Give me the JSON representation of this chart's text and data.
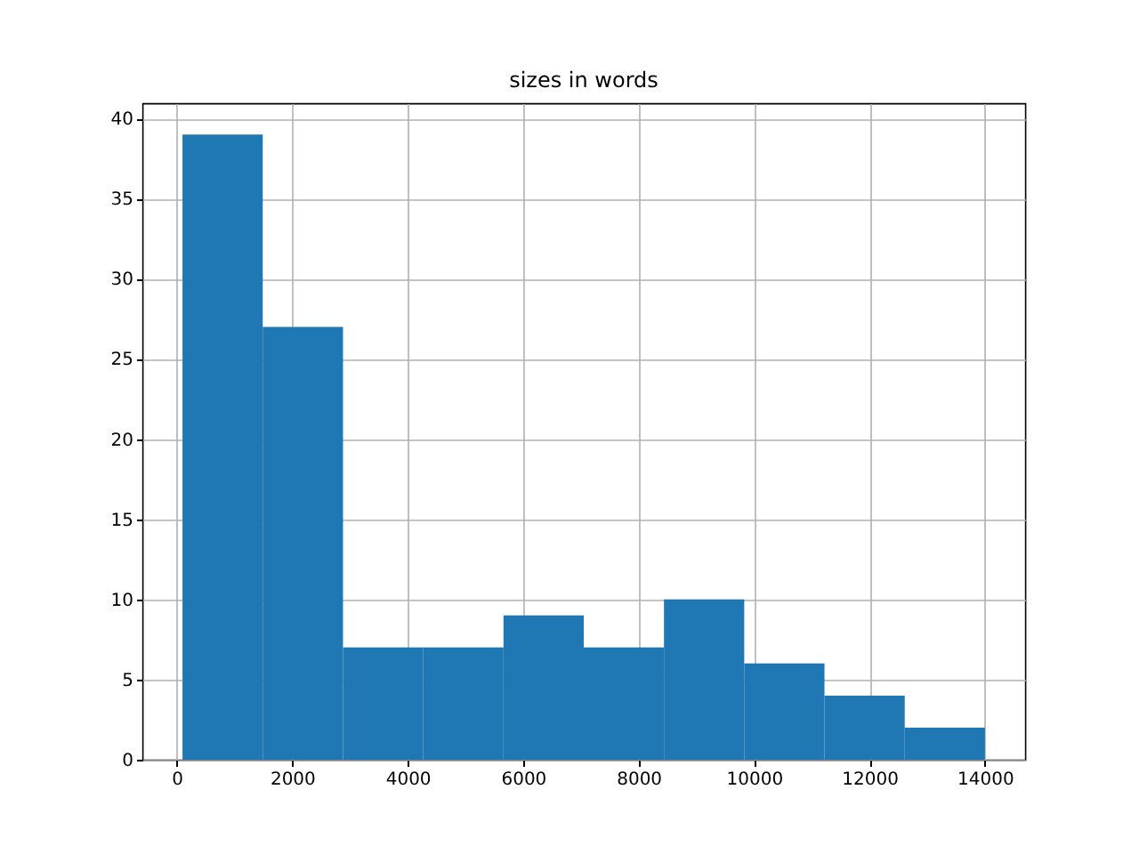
{
  "chart_data": {
    "type": "histogram",
    "title": "sizes in words",
    "bins": [
      100,
      1490,
      2880,
      4270,
      5660,
      7050,
      8440,
      9830,
      11220,
      12610,
      14000
    ],
    "values": [
      39,
      27,
      7,
      7,
      9,
      7,
      10,
      6,
      4,
      2
    ],
    "color": "#1f77b4",
    "xlim": [
      -595,
      14695
    ],
    "xticks": [
      0,
      2000,
      4000,
      6000,
      8000,
      10000,
      12000,
      14000
    ],
    "ylim": [
      0,
      40.95
    ],
    "yticks": [
      0,
      5,
      10,
      15,
      20,
      25,
      30,
      35,
      40
    ],
    "grid": true
  }
}
